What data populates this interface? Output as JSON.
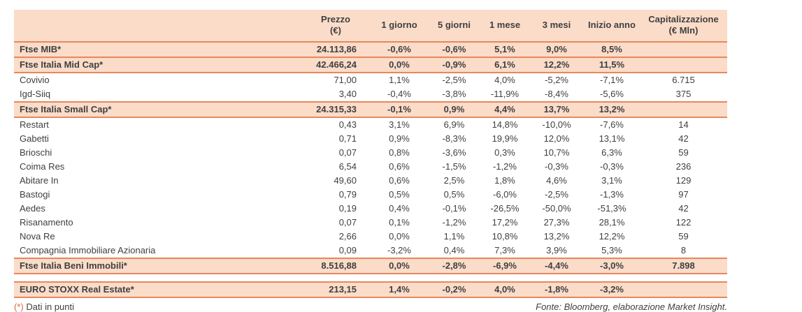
{
  "colors": {
    "band_bg": "#fbdcc9",
    "band_border": "#e8875d",
    "text": "#3f3f3f",
    "footnote_marker": "#d9683a"
  },
  "chart_data": {
    "type": "table",
    "columns": [
      {
        "l1": "Prezzo",
        "l2": "(€)"
      },
      {
        "l1": "1 giorno",
        "l2": ""
      },
      {
        "l1": "5 giorni",
        "l2": ""
      },
      {
        "l1": "1 mese",
        "l2": ""
      },
      {
        "l1": "3 mesi",
        "l2": ""
      },
      {
        "l1": "Inizio anno",
        "l2": ""
      },
      {
        "l1": "Capitalizzazione",
        "l2": "(€ Mln)"
      }
    ],
    "rows": [
      {
        "label": "Ftse MIB*",
        "type": "index",
        "prezzo": "24.113,86",
        "d1": "-0,6%",
        "d5": "-0,6%",
        "m1": "5,1%",
        "m3": "9,0%",
        "ytd": "8,5%",
        "cap": ""
      },
      {
        "label": "Ftse Italia Mid Cap*",
        "type": "index",
        "prezzo": "42.466,24",
        "d1": "0,0%",
        "d5": "-0,9%",
        "m1": "6,1%",
        "m3": "12,2%",
        "ytd": "11,5%",
        "cap": ""
      },
      {
        "label": "Covivio",
        "type": "stock",
        "prezzo": "71,00",
        "d1": "1,1%",
        "d5": "-2,5%",
        "m1": "4,0%",
        "m3": "-5,2%",
        "ytd": "-7,1%",
        "cap": "6.715"
      },
      {
        "label": "Igd-Siiq",
        "type": "stock",
        "prezzo": "3,40",
        "d1": "-0,4%",
        "d5": "-3,8%",
        "m1": "-11,9%",
        "m3": "-8,4%",
        "ytd": "-5,6%",
        "cap": "375"
      },
      {
        "label": "Ftse Italia Small Cap*",
        "type": "index",
        "prezzo": "24.315,33",
        "d1": "-0,1%",
        "d5": "0,9%",
        "m1": "4,4%",
        "m3": "13,7%",
        "ytd": "13,2%",
        "cap": ""
      },
      {
        "label": "Restart",
        "type": "stock",
        "prezzo": "0,43",
        "d1": "3,1%",
        "d5": "6,9%",
        "m1": "14,8%",
        "m3": "-10,0%",
        "ytd": "-7,6%",
        "cap": "14"
      },
      {
        "label": "Gabetti",
        "type": "stock",
        "prezzo": "0,71",
        "d1": "0,9%",
        "d5": "-8,3%",
        "m1": "19,9%",
        "m3": "12,0%",
        "ytd": "13,1%",
        "cap": "42"
      },
      {
        "label": "Brioschi",
        "type": "stock",
        "prezzo": "0,07",
        "d1": "0,8%",
        "d5": "-3,6%",
        "m1": "0,3%",
        "m3": "10,7%",
        "ytd": "6,3%",
        "cap": "59"
      },
      {
        "label": "Coima Res",
        "type": "stock",
        "prezzo": "6,54",
        "d1": "0,6%",
        "d5": "-1,5%",
        "m1": "-1,2%",
        "m3": "-0,3%",
        "ytd": "-0,3%",
        "cap": "236"
      },
      {
        "label": "Abitare In",
        "type": "stock",
        "prezzo": "49,60",
        "d1": "0,6%",
        "d5": "2,5%",
        "m1": "1,8%",
        "m3": "4,6%",
        "ytd": "3,1%",
        "cap": "129"
      },
      {
        "label": "Bastogi",
        "type": "stock",
        "prezzo": "0,79",
        "d1": "0,5%",
        "d5": "0,5%",
        "m1": "-6,0%",
        "m3": "-2,5%",
        "ytd": "-1,3%",
        "cap": "97"
      },
      {
        "label": "Aedes",
        "type": "stock",
        "prezzo": "0,19",
        "d1": "0,4%",
        "d5": "-0,1%",
        "m1": "-26,5%",
        "m3": "-50,0%",
        "ytd": "-51,3%",
        "cap": "42"
      },
      {
        "label": "Risanamento",
        "type": "stock",
        "prezzo": "0,07",
        "d1": "0,1%",
        "d5": "-1,2%",
        "m1": "17,2%",
        "m3": "27,3%",
        "ytd": "28,1%",
        "cap": "122"
      },
      {
        "label": "Nova Re",
        "type": "stock",
        "prezzo": "2,66",
        "d1": "0,0%",
        "d5": "1,1%",
        "m1": "10,8%",
        "m3": "13,2%",
        "ytd": "12,2%",
        "cap": "59"
      },
      {
        "label": "Compagnia Immobiliare Azionaria",
        "type": "stock",
        "prezzo": "0,09",
        "d1": "-3,2%",
        "d5": "0,4%",
        "m1": "7,3%",
        "m3": "3,9%",
        "ytd": "5,3%",
        "cap": "8"
      },
      {
        "label": "Ftse Italia Beni Immobili*",
        "type": "index",
        "prezzo": "8.516,88",
        "d1": "0,0%",
        "d5": "-2,8%",
        "m1": "-6,9%",
        "m3": "-4,4%",
        "ytd": "-3,0%",
        "cap": "7.898"
      },
      {
        "label": "EURO STOXX Real Estate*",
        "type": "index",
        "gap_before": true,
        "prezzo": "213,15",
        "d1": "1,4%",
        "d5": "-0,2%",
        "m1": "4,0%",
        "m3": "-1,8%",
        "ytd": "-3,2%",
        "cap": ""
      }
    ]
  },
  "footer": {
    "note_marker": "(*)",
    "note_text": "Dati in punti",
    "source": "Fonte: Bloomberg, elaborazione Market Insight."
  }
}
